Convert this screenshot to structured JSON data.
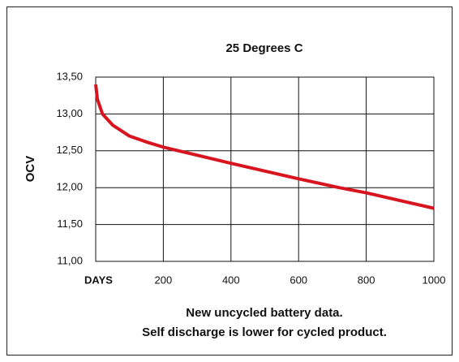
{
  "chart_data": {
    "type": "line",
    "title": "25 Degrees C",
    "xlabel": "DAYS",
    "ylabel": "OCV",
    "x": [
      0,
      5,
      20,
      50,
      100,
      150,
      200,
      400,
      600,
      720,
      800,
      1000
    ],
    "series": [
      {
        "name": "OCV",
        "color": "#d8141f",
        "values": [
          13.4,
          13.2,
          13.0,
          12.85,
          12.7,
          12.62,
          12.55,
          12.33,
          12.12,
          12.0,
          11.93,
          11.72
        ]
      }
    ],
    "xlim": [
      0,
      1000
    ],
    "xticks": [
      200,
      400,
      600,
      800,
      1000
    ],
    "ylim": [
      11.0,
      13.5
    ],
    "yticks": [
      {
        "value": 11.0,
        "label": "11,00"
      },
      {
        "value": 11.5,
        "label": "11,50"
      },
      {
        "value": 12.0,
        "label": "12,00"
      },
      {
        "value": 12.5,
        "label": "12,50"
      },
      {
        "value": 13.0,
        "label": "13,00"
      },
      {
        "value": 13.5,
        "label": "13,50"
      }
    ],
    "grid": true,
    "annotations": [
      "New uncycled battery data.",
      "Self discharge is lower for cycled product."
    ]
  }
}
